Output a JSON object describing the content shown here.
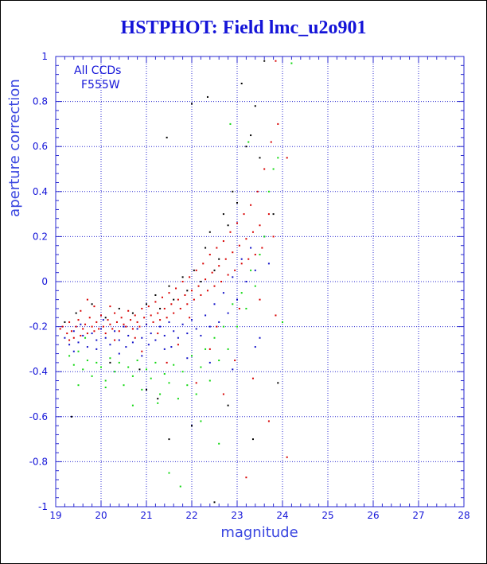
{
  "chart_data": {
    "type": "scatter",
    "title": "HSTPHOT: Field lmc_u2o901",
    "xlabel": "magnitude",
    "ylabel": "aperture correction",
    "xlim": [
      19,
      28
    ],
    "ylim": [
      -1,
      1
    ],
    "x_ticks": [
      "19",
      "20",
      "21",
      "22",
      "23",
      "24",
      "25",
      "26",
      "27",
      "28"
    ],
    "y_ticks": [
      "-1",
      "-0.8",
      "-0.6",
      "-0.4",
      "-0.2",
      "0",
      "0.2",
      "0.4",
      "0.6",
      "0.8",
      "1"
    ],
    "grid": true,
    "annotations": [
      "All CCDs",
      "F555W"
    ],
    "colors": {
      "text": "#1414d8",
      "axis": "#2a2ad0",
      "grid": "#2a2ad0"
    },
    "series": [
      {
        "color": "#d80000",
        "points": [
          [
            19.1,
            -0.21
          ],
          [
            19.15,
            -0.2
          ],
          [
            19.25,
            -0.23
          ],
          [
            19.3,
            -0.18
          ],
          [
            19.35,
            -0.22
          ],
          [
            19.4,
            -0.25
          ],
          [
            19.45,
            -0.2
          ],
          [
            19.5,
            -0.17
          ],
          [
            19.55,
            -0.24
          ],
          [
            19.6,
            -0.21
          ],
          [
            19.65,
            -0.19
          ],
          [
            19.7,
            -0.23
          ],
          [
            19.75,
            -0.16
          ],
          [
            19.8,
            -0.2
          ],
          [
            19.85,
            -0.22
          ],
          [
            19.9,
            -0.18
          ],
          [
            19.95,
            -0.21
          ],
          [
            20.0,
            -0.15
          ],
          [
            20.05,
            -0.2
          ],
          [
            20.1,
            -0.23
          ],
          [
            20.15,
            -0.17
          ],
          [
            20.2,
            -0.19
          ],
          [
            20.25,
            -0.21
          ],
          [
            20.3,
            -0.14
          ],
          [
            20.35,
            -0.18
          ],
          [
            20.4,
            -0.22
          ],
          [
            20.45,
            -0.16
          ],
          [
            20.5,
            -0.19
          ],
          [
            20.55,
            -0.2
          ],
          [
            20.6,
            -0.13
          ],
          [
            20.65,
            -0.17
          ],
          [
            20.7,
            -0.21
          ],
          [
            20.75,
            -0.15
          ],
          [
            20.8,
            -0.18
          ],
          [
            20.85,
            -0.2
          ],
          [
            20.9,
            -0.12
          ],
          [
            20.95,
            -0.16
          ],
          [
            21.0,
            -0.19
          ],
          [
            21.05,
            -0.11
          ],
          [
            21.1,
            -0.15
          ],
          [
            21.15,
            -0.18
          ],
          [
            21.2,
            -0.09
          ],
          [
            21.25,
            -0.14
          ],
          [
            21.3,
            -0.17
          ],
          [
            21.35,
            -0.07
          ],
          [
            21.4,
            -0.12
          ],
          [
            21.45,
            -0.16
          ],
          [
            21.5,
            -0.05
          ],
          [
            21.55,
            -0.1
          ],
          [
            21.6,
            -0.14
          ],
          [
            21.65,
            -0.03
          ],
          [
            21.7,
            -0.08
          ],
          [
            21.75,
            -0.12
          ],
          [
            21.8,
            0.0
          ],
          [
            21.85,
            -0.06
          ],
          [
            21.9,
            -0.1
          ],
          [
            21.95,
            0.02
          ],
          [
            22.0,
            -0.04
          ],
          [
            22.05,
            -0.08
          ],
          [
            22.1,
            0.05
          ],
          [
            22.15,
            -0.02
          ],
          [
            22.2,
            -0.06
          ],
          [
            22.25,
            0.08
          ],
          [
            22.3,
            0.01
          ],
          [
            22.35,
            -0.04
          ],
          [
            22.4,
            0.12
          ],
          [
            22.45,
            0.04
          ],
          [
            22.5,
            -0.02
          ],
          [
            22.55,
            0.15
          ],
          [
            22.6,
            0.07
          ],
          [
            22.65,
            0.0
          ],
          [
            22.7,
            0.18
          ],
          [
            22.75,
            0.1
          ],
          [
            22.8,
            0.03
          ],
          [
            22.85,
            0.22
          ],
          [
            22.9,
            0.13
          ],
          [
            22.95,
            0.05
          ],
          [
            23.0,
            0.26
          ],
          [
            23.05,
            0.16
          ],
          [
            23.1,
            0.08
          ],
          [
            23.15,
            0.3
          ],
          [
            23.2,
            0.19
          ],
          [
            23.25,
            0.1
          ],
          [
            23.3,
            0.34
          ],
          [
            23.35,
            0.22
          ],
          [
            23.4,
            0.12
          ],
          [
            23.45,
            0.4
          ],
          [
            23.5,
            0.25
          ],
          [
            23.55,
            0.15
          ],
          [
            23.6,
            0.5
          ],
          [
            23.7,
            0.3
          ],
          [
            23.75,
            0.62
          ],
          [
            23.8,
            0.2
          ],
          [
            23.85,
            0.98
          ],
          [
            23.9,
            0.7
          ],
          [
            24.1,
            0.55
          ],
          [
            22.1,
            -0.45
          ],
          [
            22.7,
            -0.5
          ],
          [
            23.2,
            -0.87
          ],
          [
            23.7,
            -0.62
          ],
          [
            21.45,
            -0.36
          ],
          [
            20.9,
            -0.31
          ],
          [
            22.4,
            -0.3
          ],
          [
            19.7,
            -0.08
          ],
          [
            19.85,
            -0.11
          ],
          [
            20.3,
            -0.26
          ],
          [
            21.7,
            -0.28
          ],
          [
            22.95,
            -0.35
          ],
          [
            23.35,
            -0.43
          ],
          [
            24.1,
            -0.78
          ],
          [
            19.3,
            -0.26
          ],
          [
            19.55,
            -0.13
          ],
          [
            20.75,
            -0.25
          ],
          [
            21.25,
            -0.23
          ],
          [
            21.95,
            -0.16
          ],
          [
            22.55,
            -0.2
          ],
          [
            23.05,
            -0.12
          ],
          [
            23.5,
            -0.08
          ],
          [
            23.85,
            -0.15
          ],
          [
            20.2,
            -0.11
          ]
        ]
      },
      {
        "color": "#1010c8",
        "points": [
          [
            19.2,
            -0.25
          ],
          [
            19.3,
            -0.28
          ],
          [
            19.4,
            -0.22
          ],
          [
            19.5,
            -0.27
          ],
          [
            19.6,
            -0.24
          ],
          [
            19.7,
            -0.29
          ],
          [
            19.8,
            -0.23
          ],
          [
            19.9,
            -0.26
          ],
          [
            20.0,
            -0.21
          ],
          [
            20.1,
            -0.25
          ],
          [
            20.2,
            -0.28
          ],
          [
            20.3,
            -0.22
          ],
          [
            20.4,
            -0.26
          ],
          [
            20.5,
            -0.2
          ],
          [
            20.6,
            -0.24
          ],
          [
            20.7,
            -0.27
          ],
          [
            20.8,
            -0.21
          ],
          [
            20.9,
            -0.25
          ],
          [
            21.0,
            -0.19
          ],
          [
            21.1,
            -0.23
          ],
          [
            21.2,
            -0.26
          ],
          [
            21.3,
            -0.2
          ],
          [
            21.4,
            -0.24
          ],
          [
            21.5,
            -0.18
          ],
          [
            21.6,
            -0.22
          ],
          [
            21.7,
            -0.25
          ],
          [
            21.8,
            -0.19
          ],
          [
            21.9,
            -0.23
          ],
          [
            22.0,
            -0.17
          ],
          [
            22.1,
            -0.21
          ],
          [
            22.2,
            -0.24
          ],
          [
            22.3,
            -0.15
          ],
          [
            22.4,
            -0.2
          ],
          [
            22.5,
            -0.1
          ],
          [
            22.6,
            -0.18
          ],
          [
            22.7,
            -0.05
          ],
          [
            22.8,
            -0.14
          ],
          [
            22.9,
            0.02
          ],
          [
            23.0,
            -0.08
          ],
          [
            23.1,
            0.1
          ],
          [
            23.2,
            0.0
          ],
          [
            23.3,
            0.15
          ],
          [
            23.4,
            0.05
          ],
          [
            23.5,
            -0.25
          ],
          [
            23.6,
            0.2
          ],
          [
            19.4,
            -0.31
          ],
          [
            19.9,
            -0.3
          ],
          [
            20.4,
            -0.32
          ],
          [
            20.9,
            -0.33
          ],
          [
            21.4,
            -0.3
          ],
          [
            21.9,
            -0.34
          ],
          [
            22.4,
            -0.36
          ],
          [
            22.9,
            -0.39
          ],
          [
            23.4,
            -0.29
          ],
          [
            23.7,
            0.08
          ],
          [
            19.55,
            -0.19
          ],
          [
            20.05,
            -0.17
          ],
          [
            20.55,
            -0.29
          ],
          [
            21.05,
            -0.28
          ],
          [
            21.55,
            -0.29
          ]
        ]
      },
      {
        "color": "#10d810",
        "points": [
          [
            19.3,
            -0.33
          ],
          [
            19.4,
            -0.37
          ],
          [
            19.5,
            -0.31
          ],
          [
            19.6,
            -0.39
          ],
          [
            19.7,
            -0.35
          ],
          [
            19.8,
            -0.42
          ],
          [
            19.9,
            -0.36
          ],
          [
            20.0,
            -0.38
          ],
          [
            20.1,
            -0.44
          ],
          [
            20.2,
            -0.34
          ],
          [
            20.3,
            -0.4
          ],
          [
            20.4,
            -0.36
          ],
          [
            20.5,
            -0.46
          ],
          [
            20.6,
            -0.38
          ],
          [
            20.7,
            -0.42
          ],
          [
            20.8,
            -0.35
          ],
          [
            20.9,
            -0.48
          ],
          [
            21.0,
            -0.39
          ],
          [
            21.1,
            -0.43
          ],
          [
            21.2,
            -0.36
          ],
          [
            21.3,
            -0.5
          ],
          [
            21.4,
            -0.41
          ],
          [
            21.5,
            -0.45
          ],
          [
            21.6,
            -0.37
          ],
          [
            21.7,
            -0.52
          ],
          [
            21.8,
            -0.4
          ],
          [
            21.9,
            -0.46
          ],
          [
            22.0,
            -0.33
          ],
          [
            22.1,
            -0.5
          ],
          [
            22.2,
            -0.38
          ],
          [
            22.3,
            -0.3
          ],
          [
            22.4,
            -0.44
          ],
          [
            22.5,
            -0.25
          ],
          [
            22.6,
            -0.35
          ],
          [
            22.7,
            -0.2
          ],
          [
            22.8,
            -0.3
          ],
          [
            22.9,
            -0.1
          ],
          [
            23.0,
            -0.2
          ],
          [
            23.1,
            -0.05
          ],
          [
            23.2,
            -0.12
          ],
          [
            23.3,
            0.05
          ],
          [
            23.4,
            -0.02
          ],
          [
            23.5,
            0.12
          ],
          [
            23.6,
            0.2
          ],
          [
            23.7,
            0.4
          ],
          [
            23.8,
            0.5
          ],
          [
            23.9,
            0.55
          ],
          [
            24.0,
            -0.18
          ],
          [
            24.2,
            0.97
          ],
          [
            22.85,
            0.7
          ],
          [
            21.5,
            -0.85
          ],
          [
            21.75,
            -0.91
          ],
          [
            22.2,
            -0.62
          ],
          [
            22.6,
            -0.72
          ],
          [
            19.5,
            -0.46
          ],
          [
            20.1,
            -0.47
          ],
          [
            20.7,
            -0.55
          ],
          [
            21.25,
            -0.54
          ],
          [
            19.65,
            -0.25
          ],
          [
            23.25,
            0.62
          ]
        ]
      },
      {
        "color": "#000000",
        "points": [
          [
            19.2,
            -0.18
          ],
          [
            19.45,
            -0.14
          ],
          [
            19.8,
            -0.1
          ],
          [
            20.1,
            -0.16
          ],
          [
            20.4,
            -0.12
          ],
          [
            20.7,
            -0.14
          ],
          [
            21.0,
            -0.1
          ],
          [
            21.2,
            -0.06
          ],
          [
            21.3,
            -0.12
          ],
          [
            21.5,
            -0.02
          ],
          [
            21.6,
            -0.08
          ],
          [
            21.8,
            0.02
          ],
          [
            21.9,
            -0.04
          ],
          [
            22.05,
            0.05
          ],
          [
            22.2,
            0.0
          ],
          [
            22.3,
            0.15
          ],
          [
            22.4,
            0.22
          ],
          [
            22.5,
            0.05
          ],
          [
            22.6,
            0.1
          ],
          [
            22.7,
            0.3
          ],
          [
            22.8,
            0.25
          ],
          [
            22.9,
            0.4
          ],
          [
            23.0,
            0.35
          ],
          [
            23.1,
            0.88
          ],
          [
            23.2,
            0.6
          ],
          [
            23.3,
            0.65
          ],
          [
            23.4,
            0.78
          ],
          [
            23.5,
            0.55
          ],
          [
            23.6,
            0.98
          ],
          [
            23.8,
            0.3
          ],
          [
            22.0,
            0.79
          ],
          [
            22.35,
            0.82
          ],
          [
            21.45,
            0.64
          ],
          [
            21.0,
            -0.48
          ],
          [
            21.25,
            -0.52
          ],
          [
            21.5,
            -0.7
          ],
          [
            22.0,
            -0.64
          ],
          [
            22.8,
            -0.55
          ],
          [
            23.35,
            -0.7
          ],
          [
            22.5,
            -0.98
          ],
          [
            19.35,
            -0.6
          ],
          [
            20.2,
            -0.36
          ],
          [
            20.85,
            -0.39
          ],
          [
            23.9,
            -0.45
          ]
        ]
      }
    ]
  }
}
